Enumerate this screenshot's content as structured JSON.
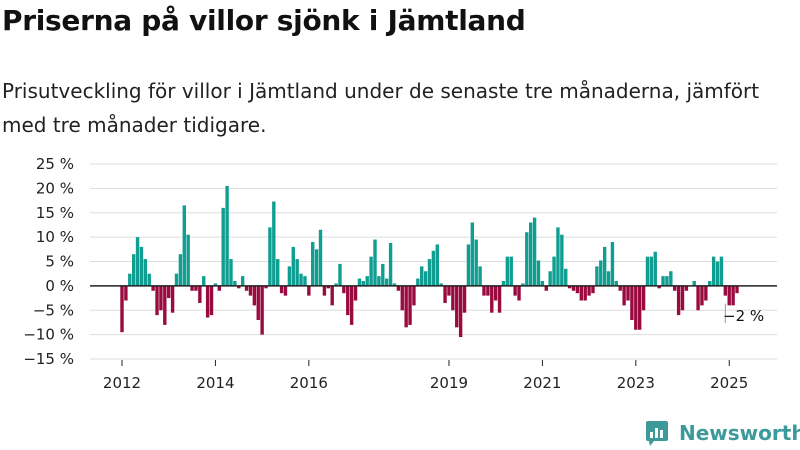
{
  "title": "Priserna på villor sjönk i Jämtland",
  "subtitle": "Prisutveckling för villor i Jämtland under de senaste tre månaderna, jämfört med tre månader tidigare.",
  "logo": {
    "text": "Newsworthy",
    "icon": "newsworthy-logo-icon"
  },
  "chart_data": {
    "type": "bar",
    "title": "Priserna på villor sjönk i Jämtland",
    "subtitle": "Prisutveckling för villor i Jämtland under de senaste tre månaderna, jämfört med tre månader tidigare.",
    "xlabel": "",
    "ylabel": "",
    "ylim": [
      -15,
      25
    ],
    "y_ticks": [
      25,
      20,
      15,
      10,
      5,
      0,
      -5,
      -10,
      -15
    ],
    "y_tick_labels": [
      "25 %",
      "20 %",
      "15 %",
      "10 %",
      "5 %",
      "0 %",
      "−5 %",
      "−10 %",
      "−15 %"
    ],
    "x_start": 2012.0,
    "x_step": 0.08333,
    "x_ticks": [
      2012,
      2014,
      2016,
      2019,
      2021,
      2023,
      2025
    ],
    "x_tick_labels": [
      "2012",
      "2014",
      "2016",
      "2019",
      "2021",
      "2023",
      "2025"
    ],
    "grid": true,
    "colors": {
      "positive": "#0f9e91",
      "negative": "#990a3f",
      "axis": "#222222",
      "grid": "#dddddd"
    },
    "annotation": {
      "text": "−2 %",
      "index": 155,
      "value": -2
    },
    "values": [
      -9.5,
      -3,
      2.5,
      6.5,
      10,
      8,
      5.5,
      2.5,
      -1,
      -6,
      -5,
      -8,
      -2.5,
      -5.5,
      2.5,
      6.5,
      16.5,
      10.5,
      -1,
      -1,
      -3.5,
      2,
      -6.5,
      -6,
      0.5,
      -1,
      16,
      20.5,
      5.5,
      1,
      -0.5,
      2,
      -1,
      -2,
      -4,
      -7,
      -10,
      -0.5,
      12,
      17.3,
      5.5,
      -1.5,
      -2,
      4,
      8,
      5.5,
      2.5,
      2,
      -2,
      9,
      7.5,
      11.5,
      -2,
      -0.5,
      -4,
      0.5,
      4.5,
      -1.5,
      -6,
      -8,
      -3,
      1.5,
      1,
      2,
      6,
      9.5,
      2,
      4.5,
      1.5,
      8.8,
      0.5,
      -1,
      -5,
      -8.5,
      -8,
      -4,
      1.5,
      4,
      3,
      5.5,
      7.2,
      8.5,
      0.5,
      -3.5,
      -2,
      -5,
      -8.5,
      -10.5,
      -5.5,
      8.5,
      13,
      9.5,
      4,
      -2,
      -2,
      -5.5,
      -3,
      -5.5,
      1,
      6,
      6,
      -2,
      -3,
      0.5,
      11,
      13,
      14,
      5.2,
      1,
      -1,
      3,
      6,
      12,
      10.5,
      3.5,
      -0.5,
      -1,
      -1.5,
      -3,
      -3,
      -2,
      -1.5,
      4,
      5.2,
      8,
      3,
      9,
      1,
      -1,
      -4,
      -3,
      -7,
      -9,
      -9,
      -5,
      6,
      6,
      7,
      -0.5,
      2,
      2,
      3,
      -1,
      -6,
      -5,
      -1,
      0,
      1,
      -5,
      -4,
      -3,
      1,
      6,
      5,
      6,
      -2,
      -4,
      -4,
      -1.5
    ]
  }
}
